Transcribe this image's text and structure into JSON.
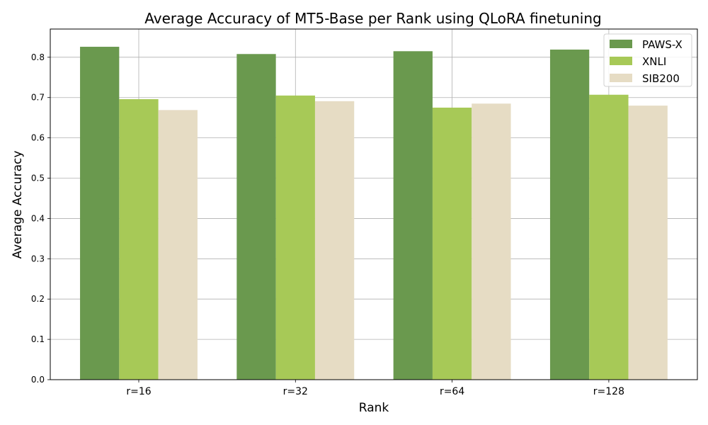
{
  "chart_data": {
    "type": "bar",
    "title": "Average Accuracy of MT5-Base per Rank using QLoRA finetuning",
    "xlabel": "Rank",
    "ylabel": "Average Accuracy",
    "categories": [
      "r=16",
      "r=32",
      "r=64",
      "r=128"
    ],
    "series": [
      {
        "name": "PAWS-X",
        "color": "#6a994e",
        "values": [
          0.826,
          0.808,
          0.815,
          0.819
        ]
      },
      {
        "name": "XNLI",
        "color": "#a7c957",
        "values": [
          0.696,
          0.705,
          0.675,
          0.707
        ]
      },
      {
        "name": "SIB200",
        "color": "#e6dcc4",
        "values": [
          0.669,
          0.691,
          0.685,
          0.68
        ]
      }
    ],
    "ylim": [
      0,
      0.87
    ],
    "yticks": [
      "0.0",
      "0.1",
      "0.2",
      "0.3",
      "0.4",
      "0.5",
      "0.6",
      "0.7",
      "0.8"
    ],
    "grid": true,
    "legend_position": "top-right"
  }
}
